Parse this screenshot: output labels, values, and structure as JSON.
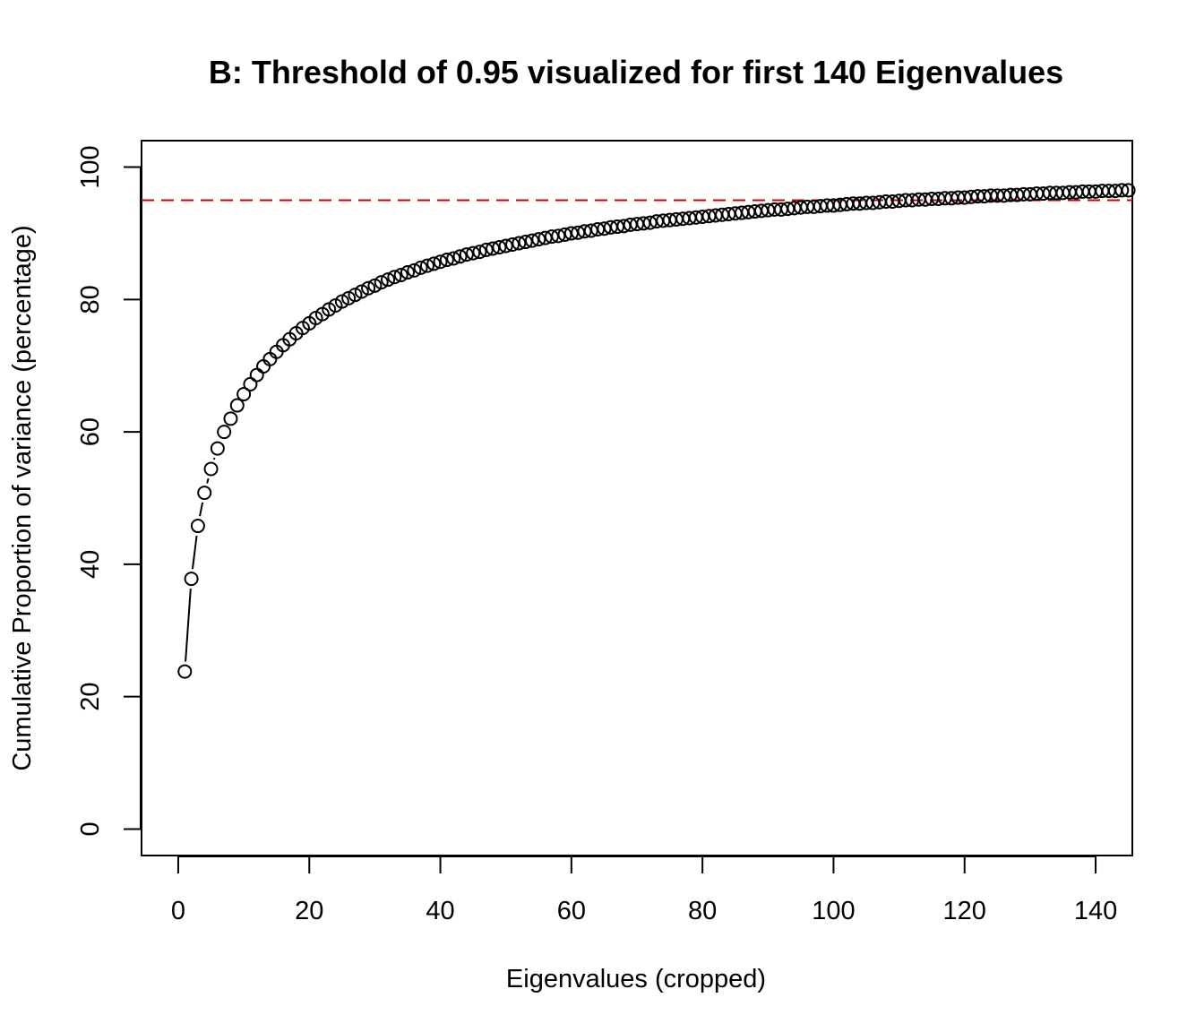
{
  "chart_data": {
    "type": "scatter",
    "title": "B: Threshold of 0.95 visualized for first 140 Eigenvalues",
    "xlabel": "Eigenvalues (cropped)",
    "ylabel": "Cumulative Proportion of variance (percentage)",
    "xlim": [
      -5.6,
      145.6
    ],
    "ylim": [
      -4,
      104
    ],
    "x_ticks": [
      0,
      20,
      40,
      60,
      80,
      100,
      120,
      140
    ],
    "y_ticks": [
      0,
      20,
      40,
      60,
      80,
      100
    ],
    "grid": false,
    "legend": "none",
    "threshold": {
      "value": 95,
      "color": "#cc0000",
      "style": "dashed"
    },
    "series": [
      {
        "marker": "open-circle",
        "connected": true,
        "color": "#000000",
        "x": [
          1,
          2,
          3,
          4,
          5,
          6,
          7,
          8,
          9,
          10,
          11,
          12,
          13,
          14,
          15,
          16,
          17,
          18,
          19,
          20,
          21,
          22,
          23,
          24,
          25,
          26,
          27,
          28,
          29,
          30,
          31,
          32,
          33,
          34,
          35,
          36,
          37,
          38,
          39,
          40,
          41,
          42,
          43,
          44,
          45,
          46,
          47,
          48,
          49,
          50,
          51,
          52,
          53,
          54,
          55,
          56,
          57,
          58,
          59,
          60,
          61,
          62,
          63,
          64,
          65,
          66,
          67,
          68,
          69,
          70,
          71,
          72,
          73,
          74,
          75,
          76,
          77,
          78,
          79,
          80,
          81,
          82,
          83,
          84,
          85,
          86,
          87,
          88,
          89,
          90,
          91,
          92,
          93,
          94,
          95,
          96,
          97,
          98,
          99,
          100,
          101,
          102,
          103,
          104,
          105,
          106,
          107,
          108,
          109,
          110,
          111,
          112,
          113,
          114,
          115,
          116,
          117,
          118,
          119,
          120,
          121,
          122,
          123,
          124,
          125,
          126,
          127,
          128,
          129,
          130,
          131,
          132,
          133,
          134,
          135,
          136,
          137,
          138,
          139,
          140,
          141,
          142,
          143,
          144,
          145
        ],
        "y": [
          23.8,
          37.8,
          45.8,
          50.8,
          54.4,
          57.5,
          60.0,
          62.0,
          64.0,
          65.7,
          67.2,
          68.6,
          69.9,
          71.0,
          72.1,
          73.1,
          74.0,
          74.9,
          75.7,
          76.4,
          77.2,
          77.8,
          78.5,
          79.1,
          79.7,
          80.2,
          80.7,
          81.2,
          81.7,
          82.1,
          82.6,
          83.0,
          83.4,
          83.7,
          84.1,
          84.4,
          84.8,
          85.1,
          85.4,
          85.7,
          86.0,
          86.2,
          86.5,
          86.8,
          87.0,
          87.2,
          87.5,
          87.7,
          87.9,
          88.1,
          88.3,
          88.5,
          88.7,
          88.9,
          89.1,
          89.3,
          89.5,
          89.6,
          89.8,
          90.0,
          90.1,
          90.3,
          90.4,
          90.6,
          90.7,
          90.9,
          91.0,
          91.1,
          91.3,
          91.4,
          91.5,
          91.6,
          91.8,
          91.9,
          92.0,
          92.1,
          92.2,
          92.3,
          92.4,
          92.5,
          92.6,
          92.7,
          92.8,
          92.9,
          93.0,
          93.1,
          93.2,
          93.3,
          93.4,
          93.5,
          93.6,
          93.6,
          93.7,
          93.8,
          93.9,
          94.0,
          94.0,
          94.1,
          94.2,
          94.2,
          94.3,
          94.4,
          94.5,
          94.5,
          94.6,
          94.6,
          94.7,
          94.8,
          94.8,
          94.9,
          95.0,
          95.0,
          95.1,
          95.1,
          95.2,
          95.2,
          95.3,
          95.3,
          95.4,
          95.4,
          95.5,
          95.6,
          95.6,
          95.7,
          95.7,
          95.7,
          95.8,
          95.8,
          95.9,
          95.9,
          96.0,
          96.0,
          96.1,
          96.1,
          96.1,
          96.2,
          96.2,
          96.3,
          96.3,
          96.3,
          96.4,
          96.4,
          96.4,
          96.5,
          96.5
        ]
      }
    ]
  }
}
